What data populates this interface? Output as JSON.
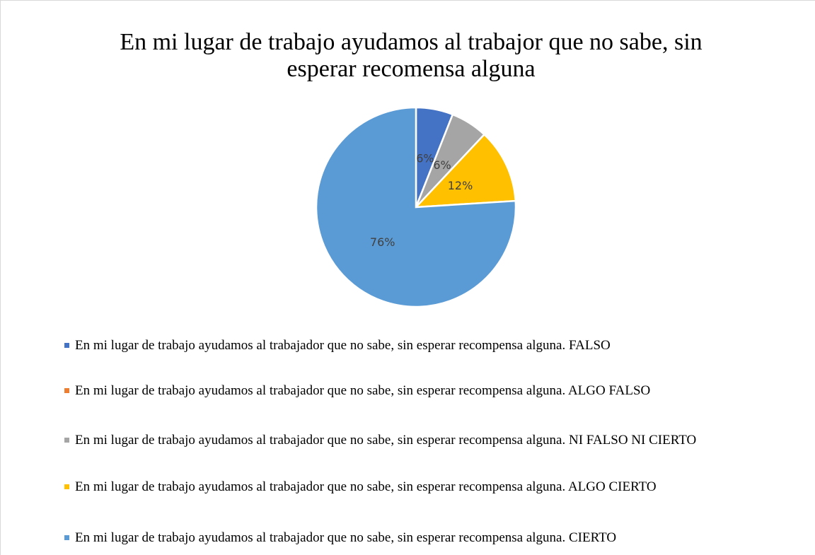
{
  "chart_data": {
    "type": "pie",
    "title": "En mi lugar de trabajo ayudamos al trabajor que no sabe, sin esperar recomensa alguna",
    "categories": [
      "En mi lugar de trabajo ayudamos al trabajador que no sabe, sin esperar recompensa alguna. FALSO",
      "En mi lugar de trabajo ayudamos al trabajador que no sabe, sin esperar recompensa alguna. ALGO FALSO",
      "En mi lugar de trabajo ayudamos al trabajador que no sabe, sin esperar recompensa alguna. NI FALSO NI CIERTO",
      "En mi lugar de trabajo ayudamos al trabajador que no sabe, sin esperar recompensa alguna. ALGO CIERTO",
      "En mi lugar de trabajo ayudamos al trabajador que no sabe, sin esperar recompensa alguna. CIERTO"
    ],
    "values": [
      6,
      0,
      6,
      12,
      76
    ],
    "value_labels": [
      "6%",
      null,
      "6%",
      "12%",
      "76%"
    ],
    "colors": [
      "#4472c4",
      "#ed7d31",
      "#a5a5a5",
      "#ffc000",
      "#5b9bd5"
    ],
    "legend": "bottom"
  }
}
